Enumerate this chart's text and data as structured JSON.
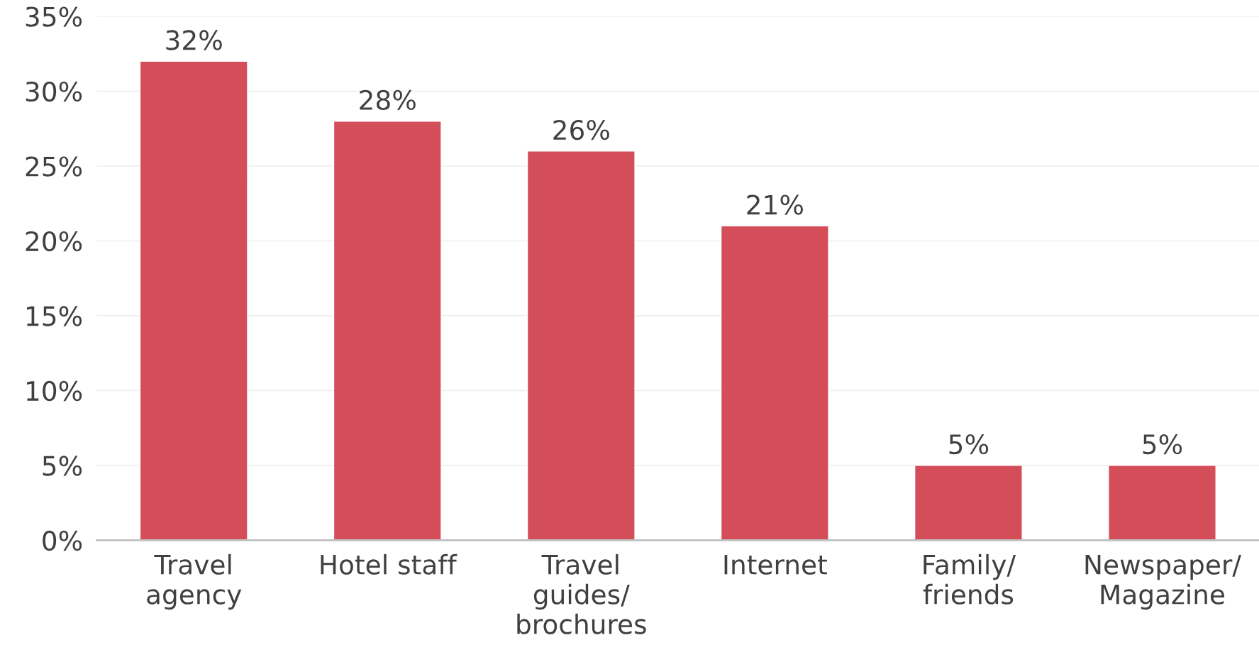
{
  "chart_data": {
    "type": "bar",
    "categories": [
      "Travel\nagency",
      "Hotel staff",
      "Travel\nguides/\nbrochures",
      "Internet",
      "Family/\nfriends",
      "Newspaper/\nMagazine"
    ],
    "values": [
      32,
      28,
      26,
      21,
      5,
      5
    ],
    "value_labels": [
      "32%",
      "28%",
      "26%",
      "21%",
      "5%",
      "5%"
    ],
    "color": "#d44e5a",
    "ylim": [
      0,
      35
    ],
    "yticks": [
      {
        "value": 0,
        "label": "0%"
      },
      {
        "value": 5,
        "label": "5%"
      },
      {
        "value": 10,
        "label": "10%"
      },
      {
        "value": 15,
        "label": "15%"
      },
      {
        "value": 20,
        "label": "20%"
      },
      {
        "value": 25,
        "label": "25%"
      },
      {
        "value": 30,
        "label": "30%"
      },
      {
        "value": 35,
        "label": "35%"
      }
    ],
    "grid": "y",
    "legend": false
  }
}
